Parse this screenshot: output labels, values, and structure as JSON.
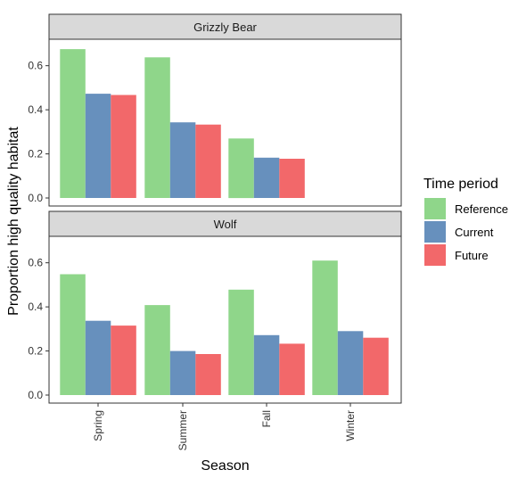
{
  "chart_data": {
    "type": "bar",
    "xlabel": "Season",
    "ylabel": "Proportion high quality habitat",
    "categories": [
      "Spring",
      "Summer",
      "Fall",
      "Winter"
    ],
    "ylim": [
      0,
      0.72
    ],
    "yticks": [
      "0.0",
      "0.2",
      "0.4",
      "0.6"
    ],
    "legend": {
      "title": "Time period",
      "placement": "right",
      "entries": [
        "Reference",
        "Current",
        "Future"
      ]
    },
    "colors": {
      "Reference": "#8fd68a",
      "Current": "#6790bd",
      "Future": "#f2686a"
    },
    "panels": [
      {
        "title": "Grizzly Bear",
        "series": [
          {
            "name": "Reference",
            "values": [
              0.675,
              0.638,
              0.27,
              null
            ]
          },
          {
            "name": "Current",
            "values": [
              0.473,
              0.343,
              0.183,
              null
            ]
          },
          {
            "name": "Future",
            "values": [
              0.467,
              0.333,
              0.178,
              null
            ]
          }
        ]
      },
      {
        "title": "Wolf",
        "series": [
          {
            "name": "Reference",
            "values": [
              0.548,
              0.408,
              0.478,
              0.61
            ]
          },
          {
            "name": "Current",
            "values": [
              0.337,
              0.2,
              0.272,
              0.29
            ]
          },
          {
            "name": "Future",
            "values": [
              0.315,
              0.186,
              0.233,
              0.26
            ]
          }
        ]
      }
    ]
  }
}
